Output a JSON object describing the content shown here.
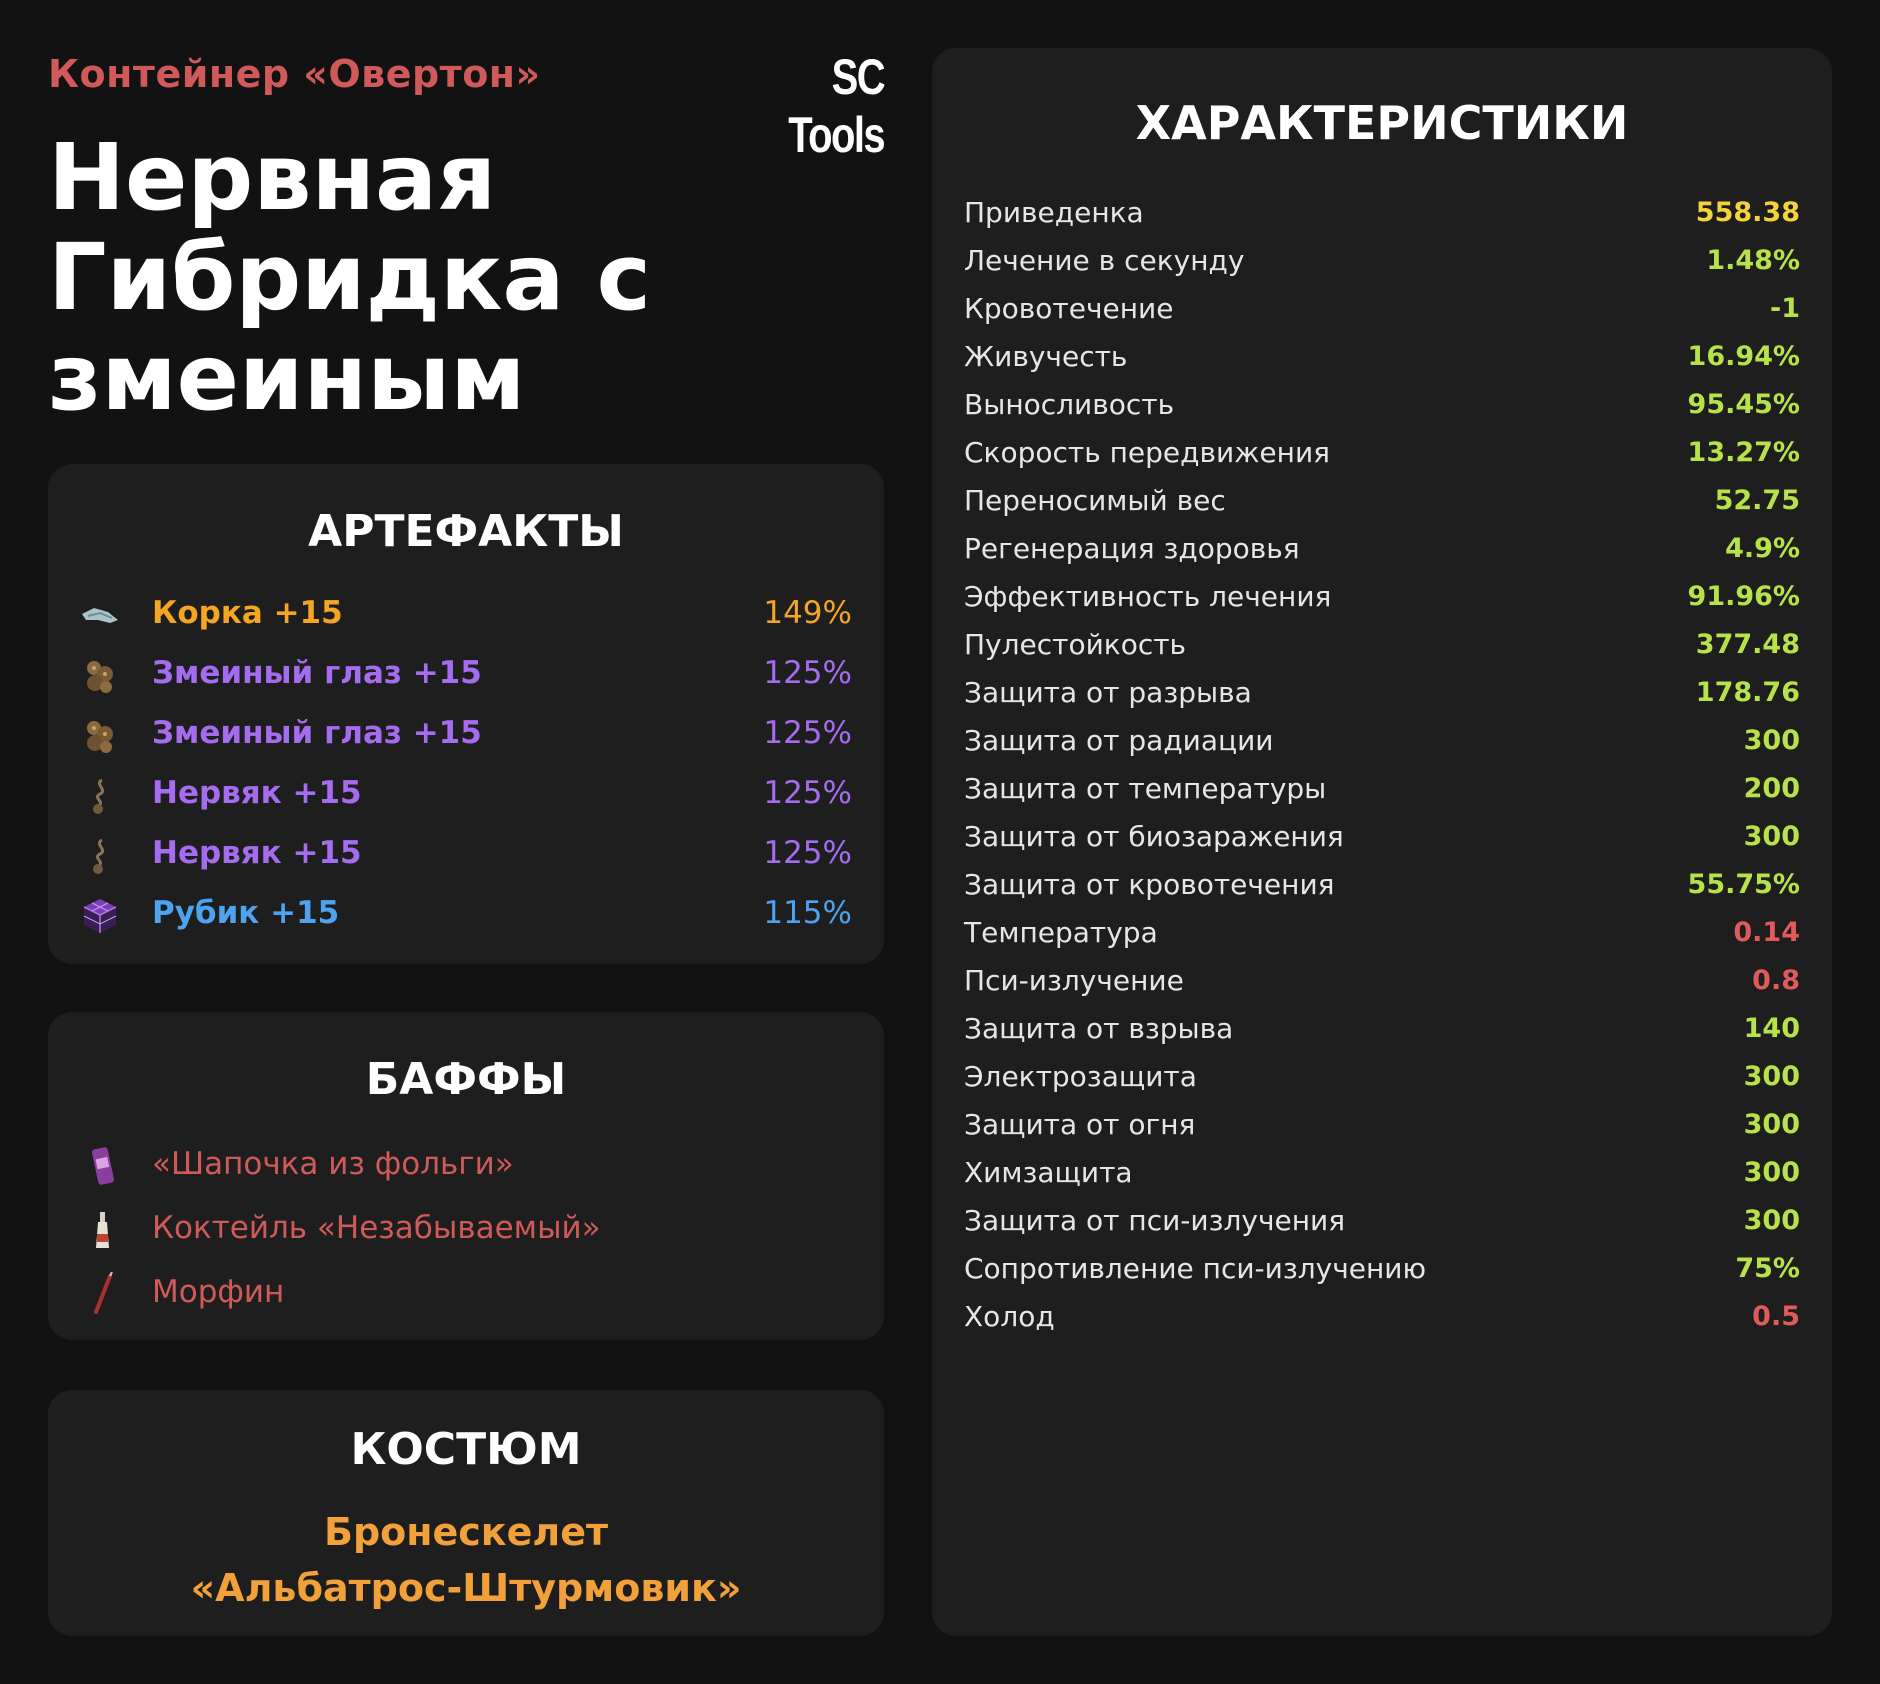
{
  "header": {
    "container_label": "Контейнер «Овертон»",
    "brand": "SC Tools",
    "title": "Нервная Гибридка с змеиным"
  },
  "artifacts": {
    "title": "АРТЕФАКТЫ",
    "items": [
      {
        "name": "Корка +15",
        "percent": "149%",
        "color": "#f5a524",
        "icon": "korka-artifact-icon"
      },
      {
        "name": "Змеиный глаз +15",
        "percent": "125%",
        "color": "#a66cf0",
        "icon": "snake-eye-artifact-icon"
      },
      {
        "name": "Змеиный глаз +15",
        "percent": "125%",
        "color": "#a66cf0",
        "icon": "snake-eye-artifact-icon"
      },
      {
        "name": "Нервяк +15",
        "percent": "125%",
        "color": "#a66cf0",
        "icon": "nervyak-artifact-icon"
      },
      {
        "name": "Нервяк +15",
        "percent": "125%",
        "color": "#a66cf0",
        "icon": "nervyak-artifact-icon"
      },
      {
        "name": "Рубик +15",
        "percent": "115%",
        "color": "#4da3f0",
        "icon": "rubik-artifact-icon"
      }
    ]
  },
  "buffs": {
    "title": "БАФФЫ",
    "items": [
      {
        "name": "«Шапочка из фольги»",
        "icon": "energy-can-icon"
      },
      {
        "name": "Коктейль «Незабываемый»",
        "icon": "bottle-icon"
      },
      {
        "name": "Морфин",
        "icon": "syringe-icon"
      }
    ]
  },
  "suit": {
    "title": "КОСТЮМ",
    "name_line1": "Бронескелет",
    "name_line2": "«Альбатрос-Штурмовик»"
  },
  "stats": {
    "title": "ХАРАКТЕРИСТИКИ",
    "items": [
      {
        "label": "Приведенка",
        "value": "558.38",
        "color": "#f5d33a"
      },
      {
        "label": "Лечение в секунду",
        "value": "1.48%",
        "color": "#b6e34a"
      },
      {
        "label": "Кровотечение",
        "value": "-1",
        "color": "#b6e34a"
      },
      {
        "label": "Живучесть",
        "value": "16.94%",
        "color": "#b6e34a"
      },
      {
        "label": "Выносливость",
        "value": "95.45%",
        "color": "#b6e34a"
      },
      {
        "label": "Скорость передвижения",
        "value": "13.27%",
        "color": "#b6e34a"
      },
      {
        "label": "Переносимый вес",
        "value": "52.75",
        "color": "#b6e34a"
      },
      {
        "label": "Регенерация здоровья",
        "value": "4.9%",
        "color": "#b6e34a"
      },
      {
        "label": "Эффективность лечения",
        "value": "91.96%",
        "color": "#b6e34a"
      },
      {
        "label": "Пулестойкость",
        "value": "377.48",
        "color": "#b6e34a"
      },
      {
        "label": "Защита от разрыва",
        "value": "178.76",
        "color": "#b6e34a"
      },
      {
        "label": "Защита от радиации",
        "value": "300",
        "color": "#b6e34a"
      },
      {
        "label": "Защита от температуры",
        "value": "200",
        "color": "#b6e34a"
      },
      {
        "label": "Защита от биозаражения",
        "value": "300",
        "color": "#b6e34a"
      },
      {
        "label": "Защита от кровотечения",
        "value": "55.75%",
        "color": "#b6e34a"
      },
      {
        "label": "Температура",
        "value": "0.14",
        "color": "#e25b5b"
      },
      {
        "label": "Пси-излучение",
        "value": "0.8",
        "color": "#e25b5b"
      },
      {
        "label": "Защита от взрыва",
        "value": "140",
        "color": "#b6e34a"
      },
      {
        "label": "Электрозащита",
        "value": "300",
        "color": "#b6e34a"
      },
      {
        "label": "Защита от огня",
        "value": "300",
        "color": "#b6e34a"
      },
      {
        "label": "Химзащита",
        "value": "300",
        "color": "#b6e34a"
      },
      {
        "label": "Защита от пси-излучения",
        "value": "300",
        "color": "#b6e34a"
      },
      {
        "label": "Сопротивление пси-излучению",
        "value": "75%",
        "color": "#b6e34a"
      },
      {
        "label": "Холод",
        "value": "0.5",
        "color": "#e25b5b"
      }
    ]
  }
}
